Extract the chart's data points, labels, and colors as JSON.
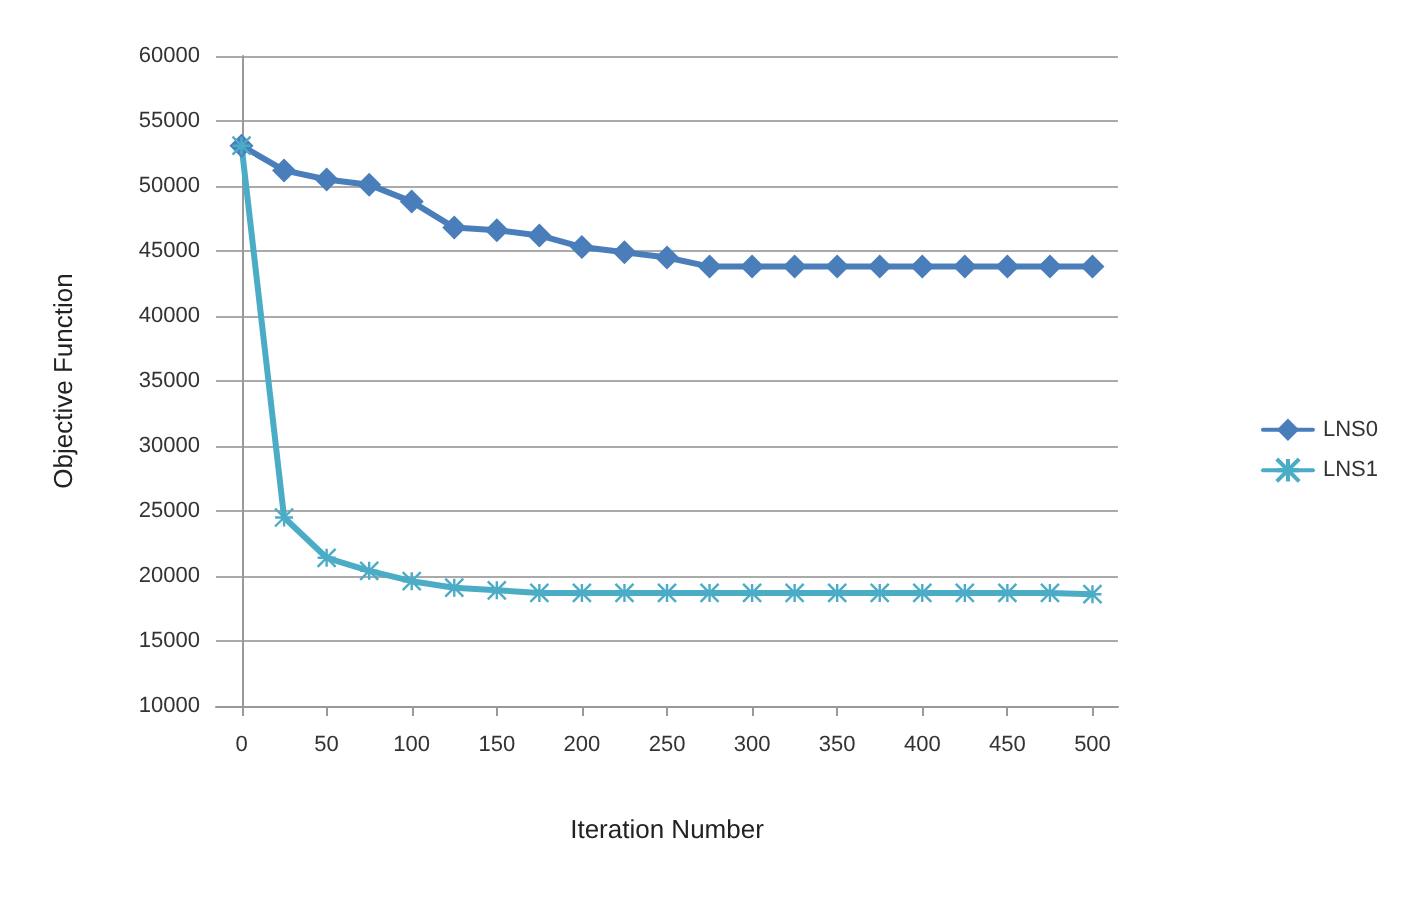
{
  "chart_data": {
    "type": "line",
    "xlabel": "Iteration Number",
    "ylabel": "Objective Function",
    "x": [
      0,
      25,
      50,
      75,
      100,
      125,
      150,
      175,
      200,
      225,
      250,
      275,
      300,
      325,
      350,
      375,
      400,
      425,
      450,
      475,
      500
    ],
    "series": [
      {
        "name": "LNS0",
        "color": "#4a7ebb",
        "marker": "diamond",
        "values": [
          53100,
          51200,
          50500,
          50100,
          48800,
          46800,
          46600,
          46200,
          45300,
          44900,
          44500,
          43800,
          43800,
          43800,
          43800,
          43800,
          43800,
          43800,
          43800,
          43800,
          43800
        ]
      },
      {
        "name": "LNS1",
        "color": "#4bacc6",
        "marker": "cross",
        "values": [
          53100,
          24500,
          21400,
          20400,
          19600,
          19100,
          18900,
          18700,
          18700,
          18700,
          18700,
          18700,
          18700,
          18700,
          18700,
          18700,
          18700,
          18700,
          18700,
          18700,
          18600
        ]
      }
    ],
    "xlim": [
      -15,
      515
    ],
    "xticks": [
      0,
      50,
      100,
      150,
      200,
      250,
      300,
      350,
      400,
      450,
      500
    ],
    "ylim": [
      10000,
      60000
    ],
    "yticks": [
      10000,
      15000,
      20000,
      25000,
      30000,
      35000,
      40000,
      45000,
      50000,
      55000,
      60000
    ],
    "grid": "y",
    "legend": "right"
  }
}
